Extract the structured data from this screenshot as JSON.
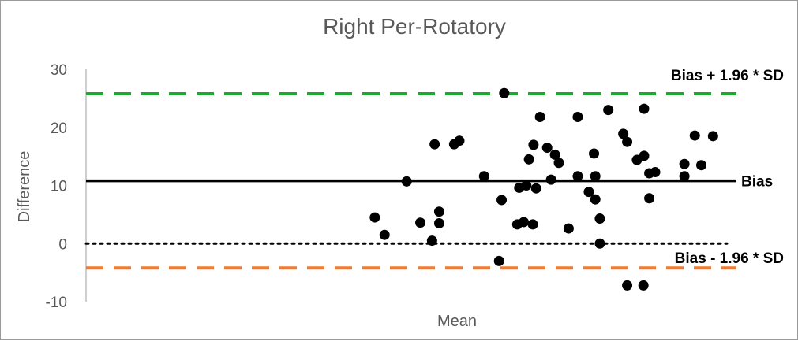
{
  "chart_data": {
    "type": "scatter",
    "title": "Right Per-Rotatory",
    "xlabel": "Mean",
    "ylabel": "Difference",
    "ylim": [
      -10,
      30
    ],
    "yticks": [
      {
        "value": 30,
        "label": "30"
      },
      {
        "value": 20,
        "label": "20"
      },
      {
        "value": 10,
        "label": "10"
      },
      {
        "value": 0,
        "label": "0"
      },
      {
        "value": -10,
        "label": "-10"
      }
    ],
    "xlim": [
      0,
      100
    ],
    "x_axis_ticks_shown": false,
    "reference_lines": [
      {
        "name": "upper-loa",
        "label": "Bias + 1.96 * SD",
        "value": 25.8,
        "style": "dashed",
        "color": "#1aaa2f"
      },
      {
        "name": "bias",
        "label": "Bias",
        "value": 10.8,
        "style": "solid",
        "color": "#000000"
      },
      {
        "name": "zero",
        "label": "",
        "value": 0,
        "style": "dotted",
        "color": "#000000"
      },
      {
        "name": "lower-loa",
        "label": "Bias - 1.96 * SD",
        "value": -4.2,
        "style": "dashed",
        "color": "#f07c30"
      }
    ],
    "series": [
      {
        "name": "Difference vs Mean",
        "color": "#000000",
        "points": [
          {
            "x": 44.4,
            "y": 4.5
          },
          {
            "x": 45.9,
            "y": 1.5
          },
          {
            "x": 49.3,
            "y": 10.7
          },
          {
            "x": 51.4,
            "y": 3.6
          },
          {
            "x": 53.2,
            "y": 0.5
          },
          {
            "x": 53.6,
            "y": 17.1
          },
          {
            "x": 54.3,
            "y": 5.5
          },
          {
            "x": 54.3,
            "y": 3.5
          },
          {
            "x": 56.6,
            "y": 17.1
          },
          {
            "x": 57.4,
            "y": 17.7
          },
          {
            "x": 61.2,
            "y": 11.6
          },
          {
            "x": 63.5,
            "y": -3.0
          },
          {
            "x": 63.9,
            "y": 7.5
          },
          {
            "x": 64.3,
            "y": 25.9
          },
          {
            "x": 66.3,
            "y": 3.3
          },
          {
            "x": 66.6,
            "y": 9.6
          },
          {
            "x": 67.3,
            "y": 3.7
          },
          {
            "x": 67.7,
            "y": 10.0
          },
          {
            "x": 68.1,
            "y": 14.5
          },
          {
            "x": 68.7,
            "y": 3.3
          },
          {
            "x": 68.8,
            "y": 17.0
          },
          {
            "x": 69.2,
            "y": 9.5
          },
          {
            "x": 69.8,
            "y": 21.8
          },
          {
            "x": 70.9,
            "y": 16.5
          },
          {
            "x": 71.5,
            "y": 11.0
          },
          {
            "x": 72.1,
            "y": 15.3
          },
          {
            "x": 72.7,
            "y": 13.9
          },
          {
            "x": 74.2,
            "y": 2.6
          },
          {
            "x": 75.6,
            "y": 11.6
          },
          {
            "x": 75.6,
            "y": 21.8
          },
          {
            "x": 77.3,
            "y": 8.9
          },
          {
            "x": 78.1,
            "y": 15.5
          },
          {
            "x": 78.3,
            "y": 11.6
          },
          {
            "x": 78.3,
            "y": 7.6
          },
          {
            "x": 79.0,
            "y": 4.3
          },
          {
            "x": 79.0,
            "y": 0.0
          },
          {
            "x": 80.3,
            "y": 23.0
          },
          {
            "x": 82.6,
            "y": 18.9
          },
          {
            "x": 83.2,
            "y": 17.5
          },
          {
            "x": 83.2,
            "y": -7.2
          },
          {
            "x": 84.7,
            "y": 14.4
          },
          {
            "x": 85.8,
            "y": 15.1
          },
          {
            "x": 85.8,
            "y": 23.2
          },
          {
            "x": 85.7,
            "y": -7.2
          },
          {
            "x": 86.6,
            "y": 12.1
          },
          {
            "x": 86.6,
            "y": 7.8
          },
          {
            "x": 87.5,
            "y": 12.3
          },
          {
            "x": 92.0,
            "y": 13.7
          },
          {
            "x": 92.0,
            "y": 11.6
          },
          {
            "x": 93.6,
            "y": 18.6
          },
          {
            "x": 94.6,
            "y": 13.5
          },
          {
            "x": 96.4,
            "y": 18.5
          }
        ]
      }
    ]
  }
}
